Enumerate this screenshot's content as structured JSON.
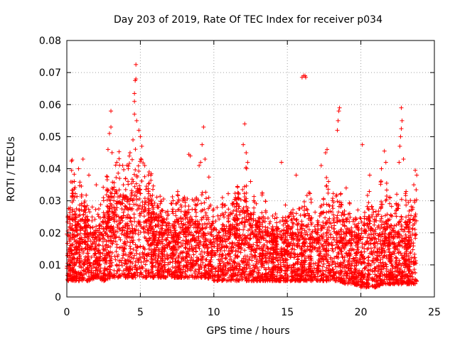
{
  "chart_data": {
    "type": "scatter",
    "title": "Day 203 of 2019, Rate Of TEC Index for receiver p034",
    "xlabel": "GPS time / hours",
    "ylabel": "ROTI / TECUs",
    "xlim": [
      0,
      25
    ],
    "ylim": [
      0,
      0.08
    ],
    "xticks": [
      0,
      5,
      10,
      15,
      20,
      25
    ],
    "yticks": [
      0,
      0.01,
      0.02,
      0.03,
      0.04,
      0.05,
      0.06,
      0.07,
      0.08
    ],
    "xtick_labels": [
      "0",
      "5",
      "10",
      "15",
      "20",
      "25"
    ],
    "ytick_labels": [
      "0",
      "0.01",
      "0.02",
      "0.03",
      "0.04",
      "0.05",
      "0.06",
      "0.07",
      "0.08"
    ],
    "grid": true,
    "marker": "+",
    "color": "#ff0000",
    "envelope": {
      "x": [
        0,
        0.3,
        0.6,
        1,
        1.5,
        2,
        2.5,
        3,
        3.5,
        4,
        4.5,
        5,
        5.5,
        6,
        7,
        8,
        9,
        9.5,
        10,
        11,
        12,
        12.5,
        13,
        14,
        15,
        16,
        16.5,
        17,
        18,
        18.5,
        19,
        19.5,
        20,
        20.5,
        21,
        21.5,
        22,
        22.5,
        23,
        23.8
      ],
      "low": [
        0.005,
        0.005,
        0.005,
        0.005,
        0.005,
        0.006,
        0.005,
        0.006,
        0.006,
        0.006,
        0.006,
        0.006,
        0.006,
        0.006,
        0.006,
        0.006,
        0.006,
        0.006,
        0.005,
        0.005,
        0.005,
        0.005,
        0.005,
        0.005,
        0.005,
        0.005,
        0.005,
        0.005,
        0.005,
        0.005,
        0.004,
        0.004,
        0.003,
        0.003,
        0.003,
        0.004,
        0.004,
        0.004,
        0.004,
        0.004
      ],
      "high": [
        0.022,
        0.034,
        0.03,
        0.028,
        0.026,
        0.025,
        0.028,
        0.036,
        0.038,
        0.036,
        0.042,
        0.04,
        0.033,
        0.03,
        0.026,
        0.028,
        0.028,
        0.03,
        0.025,
        0.026,
        0.032,
        0.03,
        0.025,
        0.023,
        0.024,
        0.025,
        0.03,
        0.024,
        0.03,
        0.028,
        0.025,
        0.022,
        0.022,
        0.03,
        0.024,
        0.028,
        0.025,
        0.028,
        0.027,
        0.03
      ]
    },
    "peaks": [
      {
        "x": 0.5,
        "y": 0.036
      },
      {
        "x": 0.8,
        "y": 0.04
      },
      {
        "x": 1.1,
        "y": 0.043
      },
      {
        "x": 1.5,
        "y": 0.038
      },
      {
        "x": 2.0,
        "y": 0.035
      },
      {
        "x": 2.8,
        "y": 0.046
      },
      {
        "x": 2.9,
        "y": 0.051
      },
      {
        "x": 3.0,
        "y": 0.053
      },
      {
        "x": 3.0,
        "y": 0.058
      },
      {
        "x": 3.4,
        "y": 0.042
      },
      {
        "x": 3.8,
        "y": 0.041
      },
      {
        "x": 4.3,
        "y": 0.045
      },
      {
        "x": 4.5,
        "y": 0.049
      },
      {
        "x": 4.6,
        "y": 0.057
      },
      {
        "x": 4.6,
        "y": 0.061
      },
      {
        "x": 4.6,
        "y": 0.0635
      },
      {
        "x": 4.65,
        "y": 0.0675
      },
      {
        "x": 4.7,
        "y": 0.068
      },
      {
        "x": 4.7,
        "y": 0.0725
      },
      {
        "x": 4.75,
        "y": 0.055
      },
      {
        "x": 4.9,
        "y": 0.052
      },
      {
        "x": 5.0,
        "y": 0.05
      },
      {
        "x": 5.1,
        "y": 0.047
      },
      {
        "x": 5.3,
        "y": 0.041
      },
      {
        "x": 5.6,
        "y": 0.039
      },
      {
        "x": 8.3,
        "y": 0.0445
      },
      {
        "x": 8.4,
        "y": 0.044
      },
      {
        "x": 9.0,
        "y": 0.041
      },
      {
        "x": 9.1,
        "y": 0.042
      },
      {
        "x": 9.2,
        "y": 0.0475
      },
      {
        "x": 9.3,
        "y": 0.053
      },
      {
        "x": 9.4,
        "y": 0.043
      },
      {
        "x": 12.0,
        "y": 0.0475
      },
      {
        "x": 12.1,
        "y": 0.054
      },
      {
        "x": 12.2,
        "y": 0.045
      },
      {
        "x": 12.3,
        "y": 0.042
      },
      {
        "x": 12.5,
        "y": 0.036
      },
      {
        "x": 14.6,
        "y": 0.042
      },
      {
        "x": 15.6,
        "y": 0.038
      },
      {
        "x": 16.0,
        "y": 0.0685
      },
      {
        "x": 16.1,
        "y": 0.069
      },
      {
        "x": 16.2,
        "y": 0.069
      },
      {
        "x": 16.25,
        "y": 0.0685
      },
      {
        "x": 17.3,
        "y": 0.041
      },
      {
        "x": 17.6,
        "y": 0.045
      },
      {
        "x": 17.7,
        "y": 0.046
      },
      {
        "x": 17.8,
        "y": 0.036
      },
      {
        "x": 18.4,
        "y": 0.052
      },
      {
        "x": 18.45,
        "y": 0.055
      },
      {
        "x": 18.5,
        "y": 0.058
      },
      {
        "x": 18.55,
        "y": 0.059
      },
      {
        "x": 19.0,
        "y": 0.034
      },
      {
        "x": 20.1,
        "y": 0.0475
      },
      {
        "x": 20.6,
        "y": 0.038
      },
      {
        "x": 21.4,
        "y": 0.04
      },
      {
        "x": 21.6,
        "y": 0.0455
      },
      {
        "x": 21.7,
        "y": 0.042
      },
      {
        "x": 22.6,
        "y": 0.042
      },
      {
        "x": 22.65,
        "y": 0.047
      },
      {
        "x": 22.7,
        "y": 0.05
      },
      {
        "x": 22.75,
        "y": 0.0525
      },
      {
        "x": 22.75,
        "y": 0.059
      },
      {
        "x": 22.8,
        "y": 0.055
      },
      {
        "x": 22.9,
        "y": 0.043
      },
      {
        "x": 23.6,
        "y": 0.035
      },
      {
        "x": 23.7,
        "y": 0.0395
      },
      {
        "x": 23.8,
        "y": 0.038
      }
    ],
    "n_points_per_band": 3200
  }
}
